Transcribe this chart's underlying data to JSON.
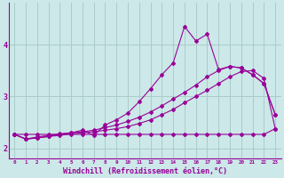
{
  "background_color": "#cce8e8",
  "grid_color": "#aacccc",
  "line_color": "#990099",
  "xlim": [
    -0.5,
    23.5
  ],
  "ylim": [
    1.8,
    4.8
  ],
  "xlabel": "Windchill (Refroidissement éolien,°C)",
  "xlabel_fontsize": 6,
  "xtick_labels": [
    "0",
    "1",
    "2",
    "3",
    "4",
    "5",
    "6",
    "7",
    "8",
    "9",
    "10",
    "11",
    "12",
    "13",
    "14",
    "15",
    "16",
    "17",
    "18",
    "19",
    "20",
    "21",
    "22",
    "23"
  ],
  "ytick_values": [
    2,
    3,
    4
  ],
  "series1_x": [
    0,
    1,
    2,
    3,
    4,
    5,
    6,
    7,
    8,
    9,
    10,
    11,
    12,
    13,
    14,
    15,
    16,
    17,
    18,
    19,
    20,
    21,
    22,
    23
  ],
  "series1_y": [
    2.27,
    2.27,
    2.27,
    2.27,
    2.27,
    2.27,
    2.27,
    2.27,
    2.27,
    2.27,
    2.27,
    2.27,
    2.27,
    2.27,
    2.27,
    2.27,
    2.27,
    2.27,
    2.27,
    2.27,
    2.27,
    2.27,
    2.27,
    2.38
  ],
  "series2_x": [
    0,
    1,
    2,
    3,
    4,
    5,
    6,
    7,
    8,
    9,
    10,
    11,
    12,
    13,
    14,
    15,
    16,
    17,
    18,
    19,
    20,
    21,
    22,
    23
  ],
  "series2_y": [
    2.27,
    2.18,
    2.2,
    2.23,
    2.25,
    2.28,
    2.3,
    2.32,
    2.35,
    2.38,
    2.42,
    2.48,
    2.55,
    2.65,
    2.75,
    2.88,
    3.0,
    3.12,
    3.25,
    3.38,
    3.48,
    3.5,
    3.35,
    2.38
  ],
  "series3_x": [
    0,
    1,
    2,
    3,
    4,
    5,
    6,
    7,
    8,
    9,
    10,
    11,
    12,
    13,
    14,
    15,
    16,
    17,
    18,
    19,
    20,
    21,
    22,
    23
  ],
  "series3_y": [
    2.27,
    2.18,
    2.2,
    2.23,
    2.27,
    2.3,
    2.32,
    2.35,
    2.4,
    2.45,
    2.52,
    2.6,
    2.7,
    2.82,
    2.95,
    3.08,
    3.22,
    3.38,
    3.5,
    3.58,
    3.55,
    3.42,
    3.25,
    2.65
  ],
  "series4_x": [
    0,
    1,
    2,
    3,
    4,
    5,
    6,
    7,
    8,
    9,
    10,
    11,
    12,
    13,
    14,
    15,
    16,
    17,
    18,
    19,
    20,
    21,
    22,
    23
  ],
  "series4_y": [
    2.27,
    2.18,
    2.22,
    2.25,
    2.28,
    2.3,
    2.35,
    2.25,
    2.45,
    2.55,
    2.68,
    2.9,
    3.15,
    3.42,
    3.65,
    4.35,
    4.07,
    4.2,
    3.52,
    3.58,
    3.55,
    3.42,
    3.25,
    2.65
  ]
}
